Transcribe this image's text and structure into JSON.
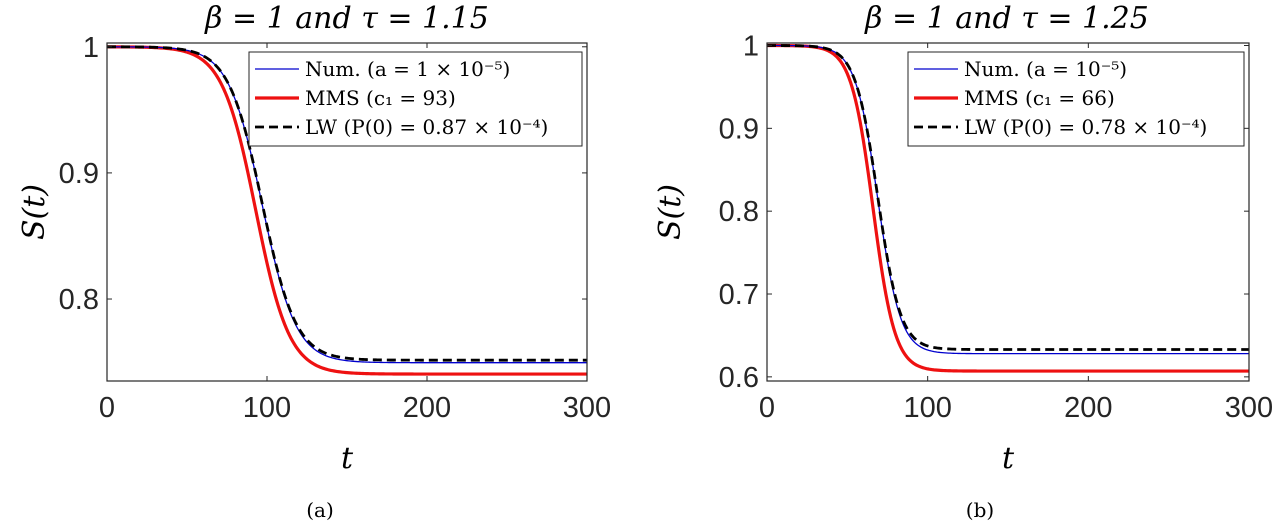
{
  "chart_data": [
    {
      "type": "line",
      "title": "β = 1 and τ = 1.15",
      "xlabel": "t",
      "ylabel": "S(t)",
      "xlim": [
        0,
        300
      ],
      "ylim": [
        0.735,
        1.003
      ],
      "xticks": [
        "0",
        "100",
        "200",
        "300"
      ],
      "yticks": [
        "0.8",
        "0.9",
        "1"
      ],
      "yticks_values": [
        0.8,
        0.9,
        1.0
      ],
      "xticks_values": [
        0,
        100,
        200,
        300
      ],
      "legend_position": "top-right",
      "caption": "(a)",
      "series": [
        {
          "name": "Num. (a = 1 × 10⁻⁵)",
          "color": "#0000CD",
          "style": "solid-thin",
          "final": 0.7495,
          "midpoint": 97,
          "width": 10.5
        },
        {
          "name": "MMS (c₁ = 93)",
          "color": "#EE1111",
          "style": "solid-thick",
          "final": 0.7405,
          "midpoint": 93,
          "width": 10.5
        },
        {
          "name": "LW (P(0) = 0.87 × 10⁻⁴)",
          "color": "#000000",
          "style": "dashed",
          "final": 0.7515,
          "midpoint": 97,
          "width": 10.5
        }
      ]
    },
    {
      "type": "line",
      "title": "β = 1 and τ = 1.25",
      "xlabel": "t",
      "ylabel": "S(t)",
      "xlim": [
        0,
        300
      ],
      "ylim": [
        0.595,
        1.003
      ],
      "xticks": [
        "0",
        "100",
        "200",
        "300"
      ],
      "yticks": [
        "0.6",
        "0.7",
        "0.8",
        "0.9",
        "1"
      ],
      "yticks_values": [
        0.6,
        0.7,
        0.8,
        0.9,
        1.0
      ],
      "xticks_values": [
        0,
        100,
        200,
        300
      ],
      "legend_position": "top-right",
      "caption": "(b)",
      "series": [
        {
          "name": "Num. (a = 10⁻⁵)",
          "color": "#0000CD",
          "style": "solid-thin",
          "final": 0.628,
          "midpoint": 69,
          "width": 7
        },
        {
          "name": "MMS (c₁ = 66)",
          "color": "#EE1111",
          "style": "solid-thick",
          "final": 0.607,
          "midpoint": 66,
          "width": 6.8
        },
        {
          "name": "LW (P(0) = 0.78 × 10⁻⁴)",
          "color": "#000000",
          "style": "dashed",
          "final": 0.633,
          "midpoint": 69,
          "width": 7
        }
      ]
    }
  ]
}
